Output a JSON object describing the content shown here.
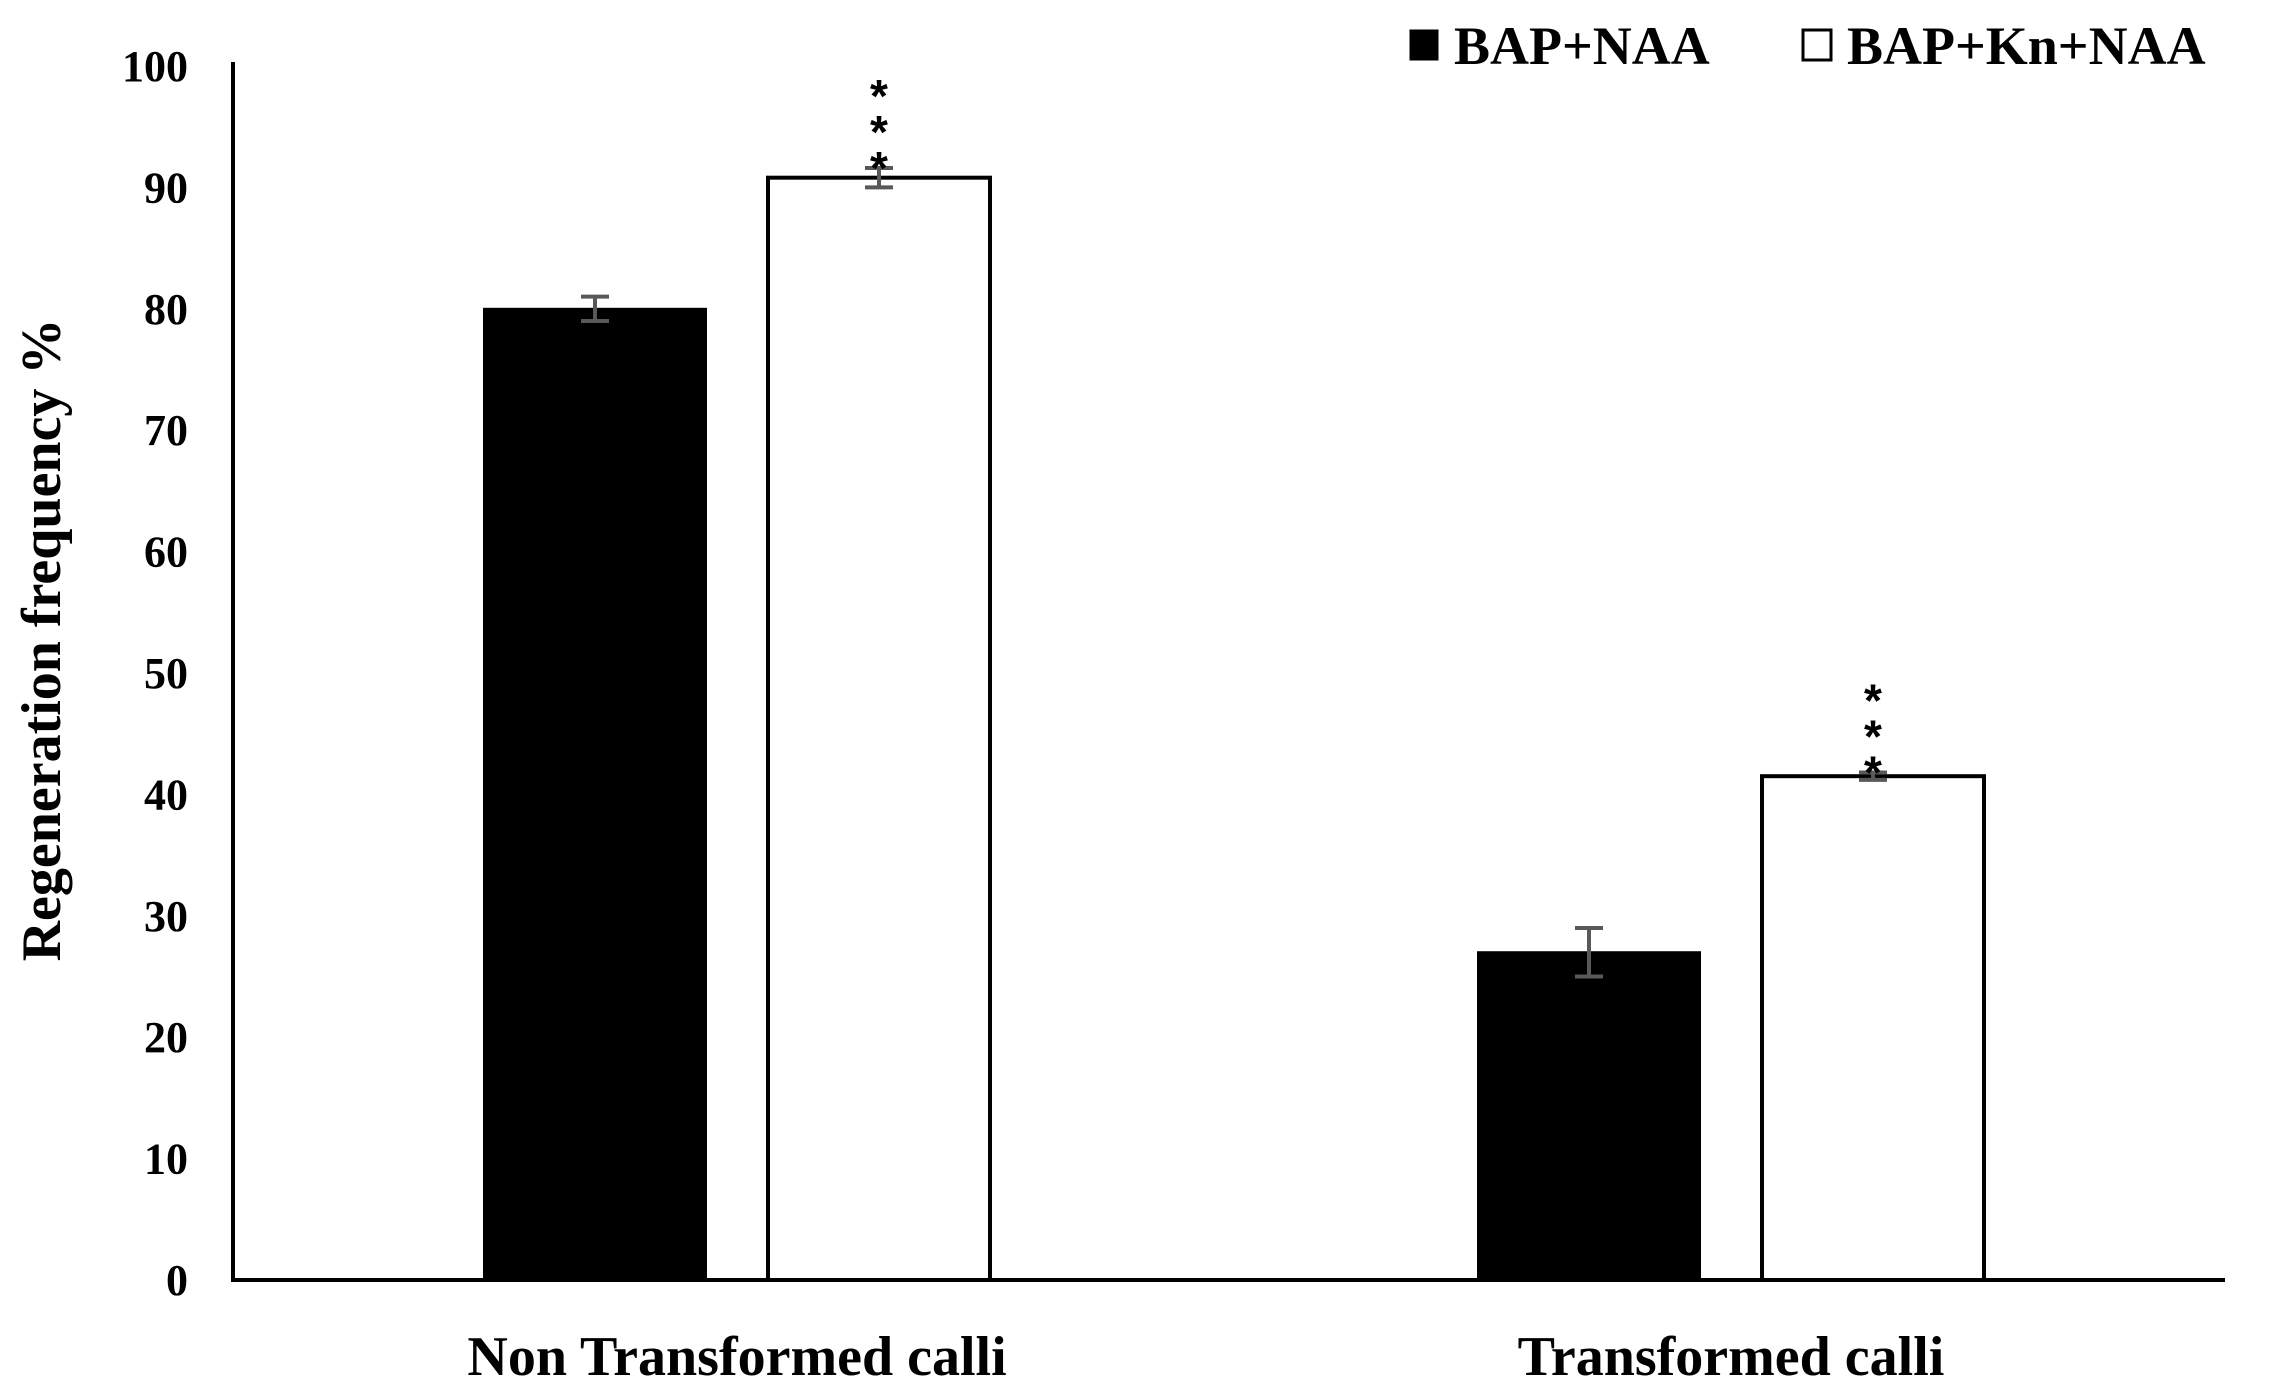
{
  "chart_data": {
    "type": "bar",
    "title": "",
    "xlabel": "",
    "ylabel": "Regeneration frequency %",
    "ylim": [
      0,
      100
    ],
    "yticks": [
      "0",
      "10",
      "20",
      "30",
      "40",
      "50",
      "60",
      "70",
      "80",
      "90",
      "100"
    ],
    "categories": [
      "Non Transformed calli",
      "Transformed calli"
    ],
    "series": [
      {
        "name": "BAP+NAA",
        "color": "#000000",
        "fill": "solid",
        "values": [
          80.0,
          27.0
        ],
        "errors": [
          1.0,
          2.0
        ],
        "significance": [
          "",
          ""
        ]
      },
      {
        "name": "BAP+Kn+NAA",
        "color": "#ffffff",
        "fill": "hollow",
        "values": [
          90.8,
          41.5
        ],
        "errors": [
          0.8,
          0.3
        ],
        "significance": [
          "***",
          "***"
        ]
      }
    ],
    "legend_position": "top-right",
    "grid": false,
    "error_bar_color": "#595959"
  }
}
